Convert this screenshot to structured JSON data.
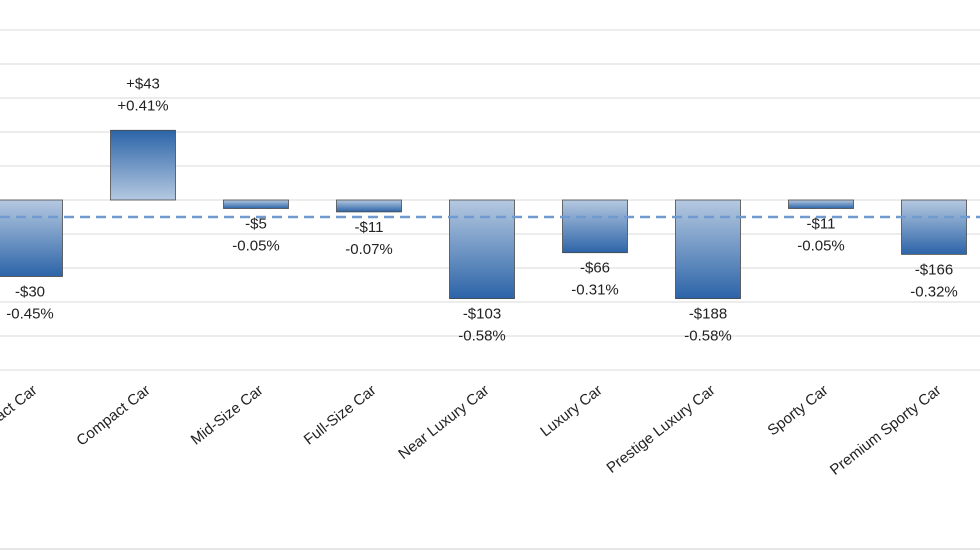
{
  "chart_data": {
    "type": "bar",
    "categories": [
      "Subcompact Car",
      "Compact Car",
      "Mid-Size Car",
      "Full-Size Car",
      "Near Luxury Car",
      "Luxury Car",
      "Prestige Luxury Car",
      "Sporty Car",
      "Premium Sporty Car"
    ],
    "values": [
      -0.45,
      0.41,
      -0.05,
      -0.07,
      -0.58,
      -0.31,
      -0.58,
      -0.05,
      -0.32
    ],
    "value_labels": [
      "-0.45%",
      "+0.41%",
      "-0.05%",
      "-0.07%",
      "-0.58%",
      "-0.31%",
      "-0.58%",
      "-0.05%",
      "-0.32%"
    ],
    "dollar_labels": [
      "-$30",
      "+$43",
      "-$5",
      "-$11",
      "-$103",
      "-$66",
      "-$188",
      "-$11",
      "-$166"
    ],
    "color": "#2c64a8",
    "ylim": [
      -1,
      1.2
    ],
    "yticks": [
      -1,
      -0.8,
      -0.6,
      -0.4,
      -0.2,
      0,
      0.2,
      0.4,
      0.6,
      0.8,
      1,
      1.2
    ],
    "grid": true,
    "reference_line": -0.1,
    "reference_color": "#6f9bd1"
  }
}
